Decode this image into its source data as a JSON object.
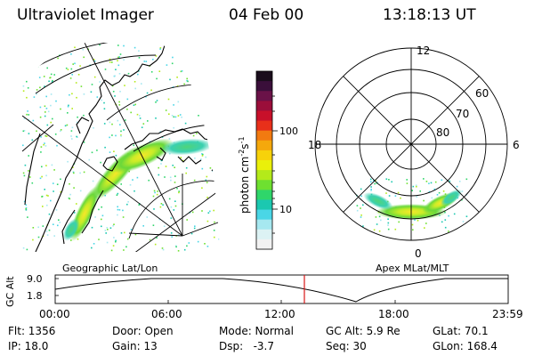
{
  "header": {
    "instrument": "Ultraviolet Imager",
    "date": "04 Feb 00",
    "time": "13:18:13 UT"
  },
  "colorbar": {
    "label": "photon cm",
    "label_sup1": "-2",
    "label_mid": "s",
    "label_sup2": "-1",
    "tick_100": "100",
    "tick_10": "10",
    "colors": [
      "#1a0d1c",
      "#3a0f3a",
      "#6a1248",
      "#9b0e3a",
      "#c8102a",
      "#e8301a",
      "#f27a10",
      "#f5a80c",
      "#f7d20a",
      "#eaf00a",
      "#b4ea1a",
      "#6ee030",
      "#2fd66a",
      "#1bc8b0",
      "#4ad6e6",
      "#a6e8f0",
      "#dcf2f4",
      "#f2f2f2"
    ]
  },
  "left_panel": {
    "label": "Geographic Lat/Lon"
  },
  "right_panel": {
    "label": "Apex MLat/MLT",
    "mlt_labels": {
      "top": "12",
      "left": "18",
      "right": "6",
      "bottom": "0"
    },
    "lat_labels": [
      "60",
      "70",
      "80"
    ]
  },
  "altitude_plot": {
    "ylabel": "GC Alt",
    "y_ticks": [
      "9.0",
      "1.8"
    ],
    "x_ticks": [
      "00:00",
      "06:00",
      "12:00",
      "18:00",
      "23:59"
    ],
    "marker_color": "#d81818"
  },
  "footer": {
    "row1": {
      "flt": "Flt: 1356",
      "door": "Door: Open",
      "mode": "Mode: Normal",
      "gcalt": "GC Alt: 5.9 Re",
      "glat": "GLat:  70.1"
    },
    "row2": {
      "ip": "IP: 18.0",
      "gain": "Gain: 13",
      "dsp": "Dsp:   -3.7",
      "seq": "Seq: 30",
      "glon": "GLon: 168.4"
    }
  }
}
